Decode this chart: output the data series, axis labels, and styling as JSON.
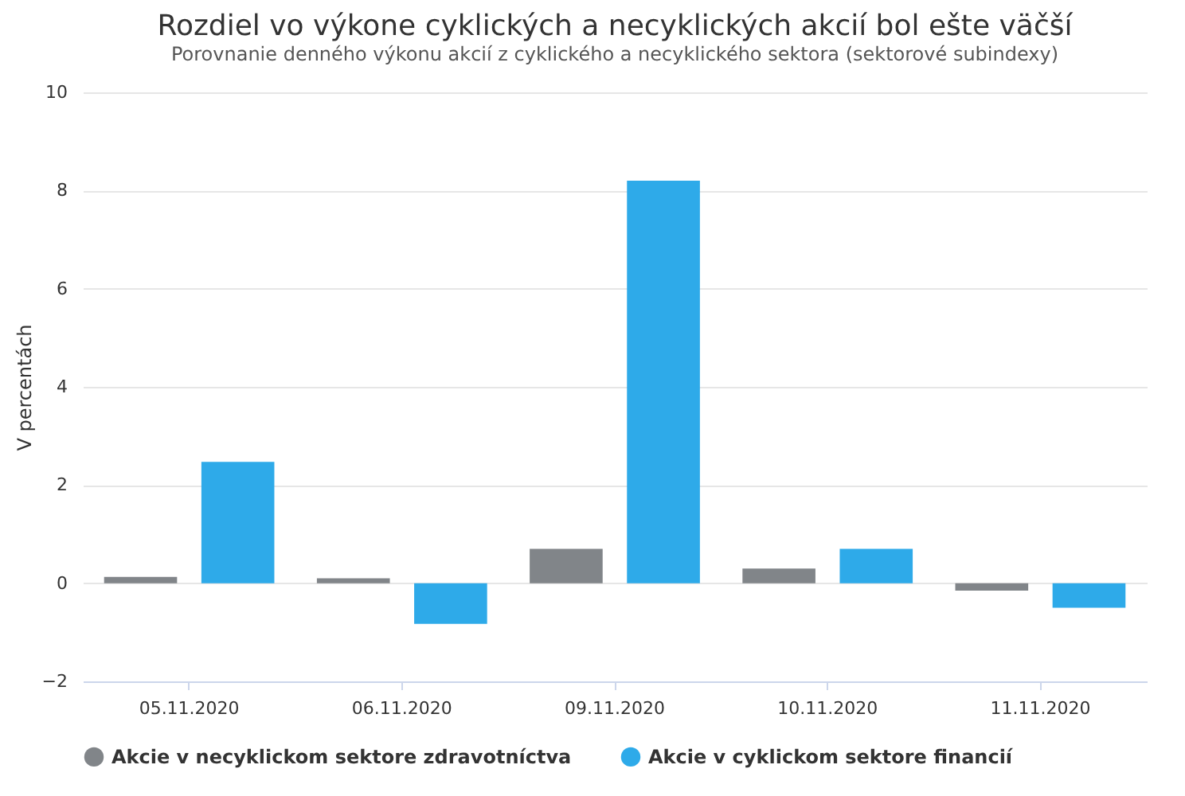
{
  "chart_data": {
    "type": "bar",
    "title": "Rozdiel vo výkone cyklických a necyklických akcií bol ešte väčší",
    "subtitle": "Porovnanie denného výkonu akcií z cyklického a necyklického sektora (sektorové subindexy)",
    "ylabel": "V percentách",
    "categories": [
      "05.11.2020",
      "06.11.2020",
      "09.11.2020",
      "10.11.2020",
      "11.11.2020"
    ],
    "series": [
      {
        "name": "Akcie v necyklickom sektore zdravotníctva",
        "color": "#818589",
        "values": [
          0.13,
          0.1,
          0.7,
          0.3,
          -0.15
        ]
      },
      {
        "name": "Akcie v cyklickom sektore financií",
        "color": "#2eaae9",
        "values": [
          2.47,
          -0.83,
          8.2,
          0.7,
          -0.5
        ]
      }
    ],
    "ylim": [
      -2,
      10
    ],
    "yticks": [
      -2,
      0,
      2,
      4,
      6,
      8,
      10
    ],
    "grid": "y",
    "legend": "bottom"
  }
}
